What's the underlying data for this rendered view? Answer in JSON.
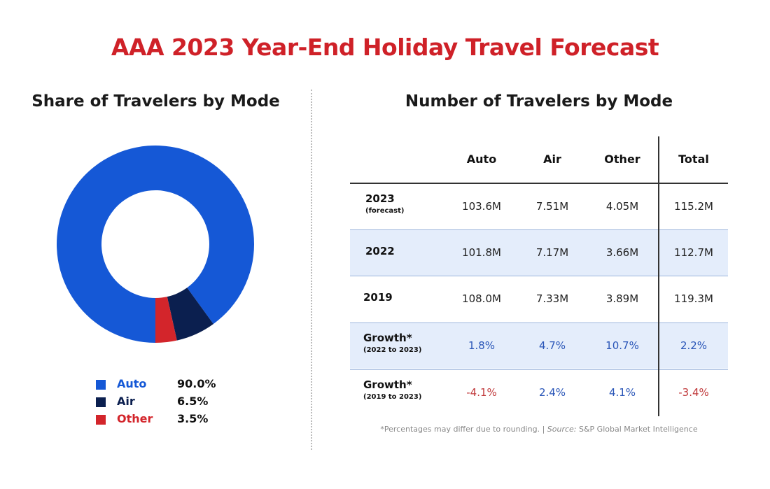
{
  "title": "AAA 2023 Year-End Holiday Travel Forecast",
  "colors": {
    "title": "#cf2128",
    "auto": "#1558d6",
    "air": "#0b1f4f",
    "other": "#d3252b",
    "positive": "#2a56b8",
    "negative": "#c0393b",
    "row_highlight": "#e4edfb"
  },
  "chart_data": [
    {
      "type": "pie",
      "subtype": "donut",
      "title": "Share of Travelers by Mode",
      "legend_position": "bottom",
      "slices": [
        {
          "name": "Auto",
          "value": 90.0,
          "label": "90.0%",
          "color": "#1558d6"
        },
        {
          "name": "Air",
          "value": 6.5,
          "label": "6.5%",
          "color": "#0b1f4f"
        },
        {
          "name": "Other",
          "value": 3.5,
          "label": "3.5%",
          "color": "#d3252b"
        }
      ]
    },
    {
      "type": "table",
      "title": "Number of Travelers by Mode",
      "columns": [
        "Auto",
        "Air",
        "Other",
        "Total"
      ],
      "rows": [
        {
          "label": "2023",
          "sublabel": "(forecast)",
          "values": [
            "103.6M",
            "7.51M",
            "4.05M",
            "115.2M"
          ],
          "highlight": false
        },
        {
          "label": "2022",
          "sublabel": "",
          "values": [
            "101.8M",
            "7.17M",
            "3.66M",
            "112.7M"
          ],
          "highlight": true
        },
        {
          "label": "2019",
          "sublabel": "",
          "values": [
            "108.0M",
            "7.33M",
            "3.89M",
            "119.3M"
          ],
          "highlight": false
        },
        {
          "label": "Growth*",
          "sublabel": "(2022 to 2023)",
          "values": [
            "1.8%",
            "4.7%",
            "10.7%",
            "2.2%"
          ],
          "highlight": true
        },
        {
          "label": "Growth*",
          "sublabel": "(2019 to 2023)",
          "values": [
            "-4.1%",
            "2.4%",
            "4.1%",
            "-3.4%"
          ],
          "highlight": false
        }
      ],
      "footnote": "*Percentages may differ due to rounding. | ",
      "footnote_source_label": "Source:",
      "footnote_source": " S&P Global Market Intelligence"
    }
  ]
}
